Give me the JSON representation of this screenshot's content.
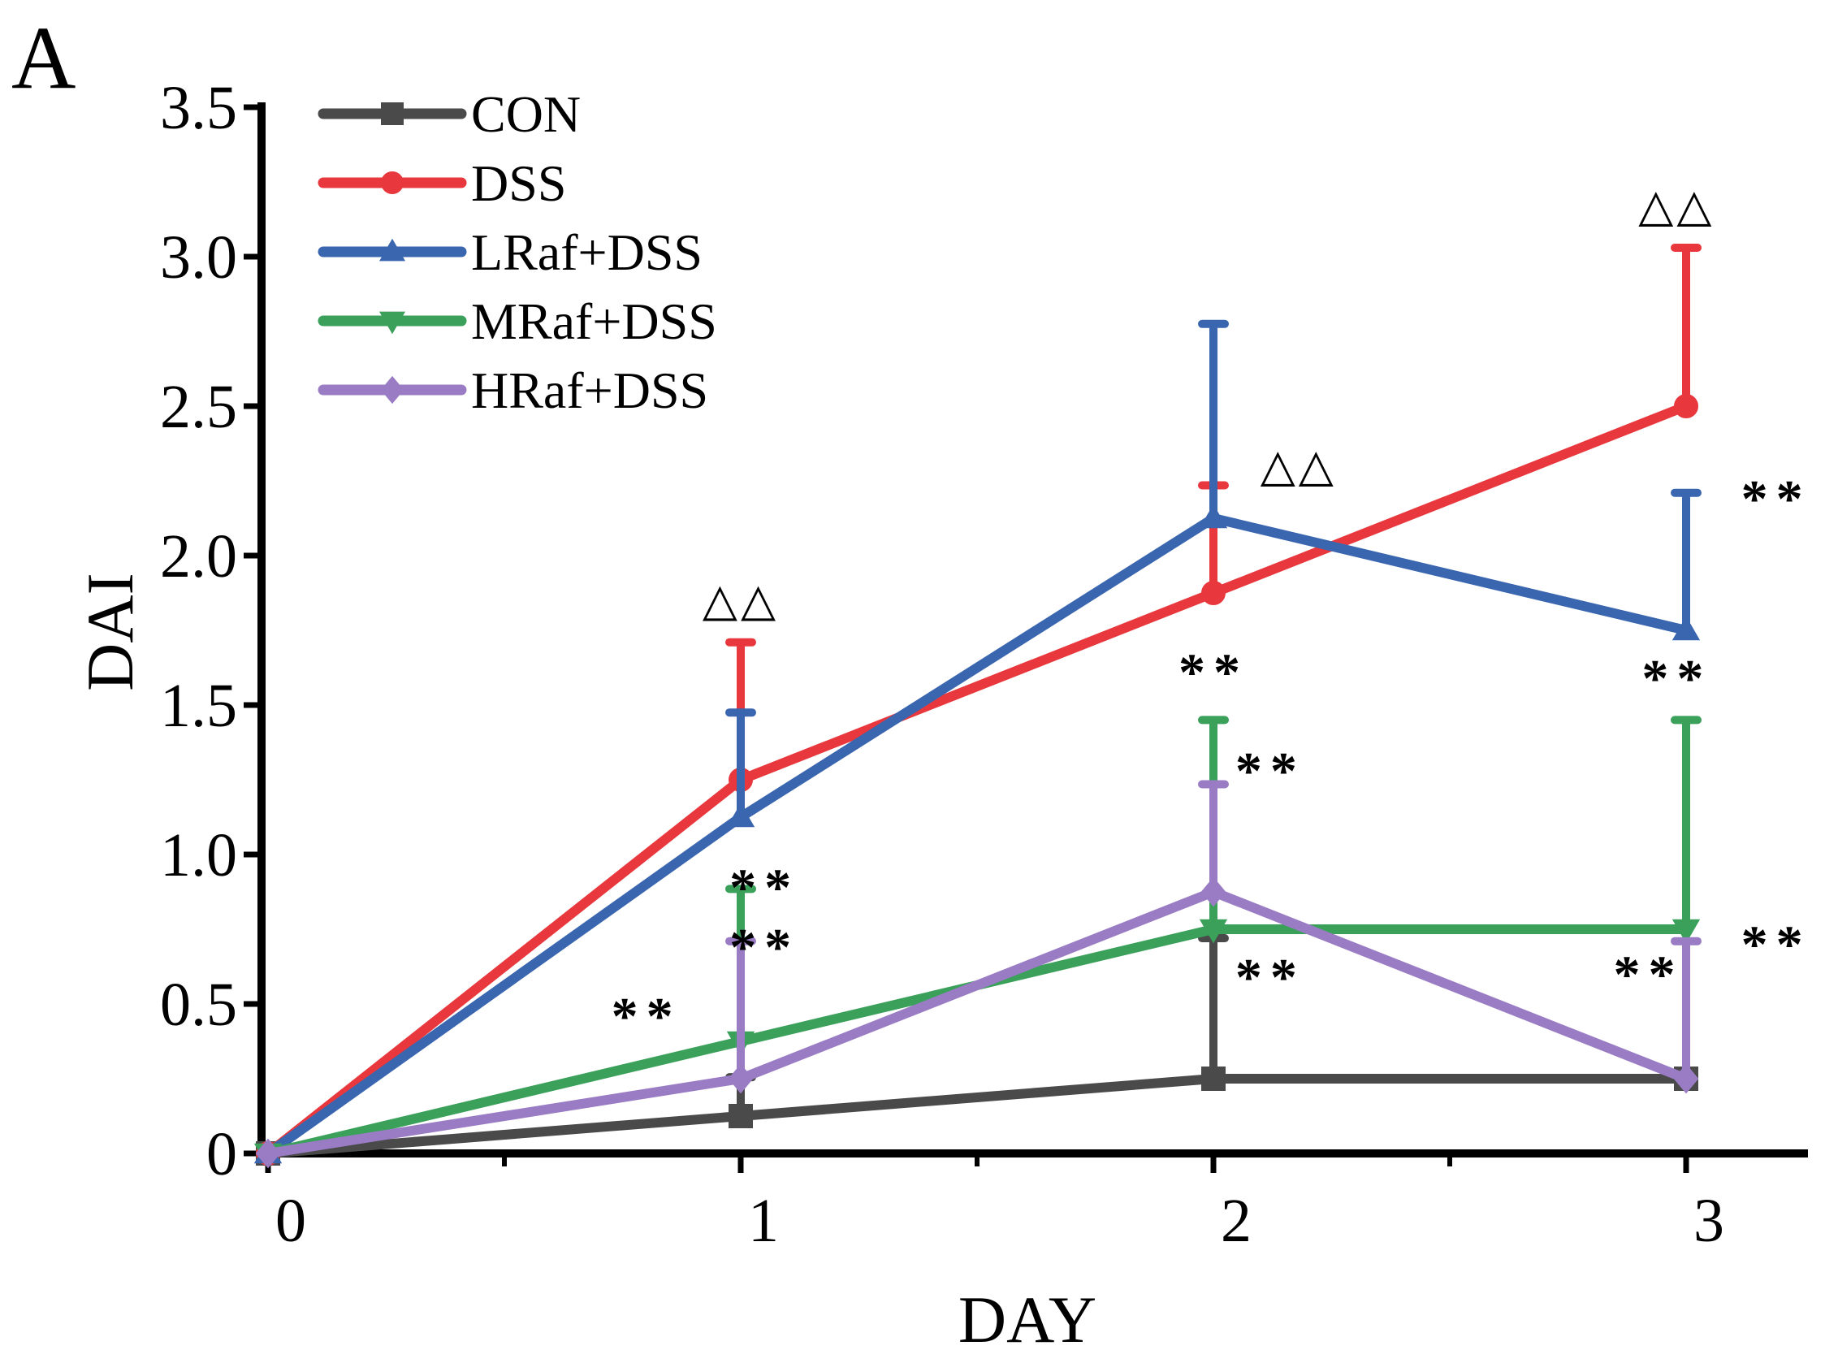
{
  "chart_data": {
    "type": "line",
    "panel_label": "A",
    "xlabel": "DAY",
    "ylabel": "DAI",
    "xlim": [
      -0.05,
      3.25
    ],
    "ylim": [
      0,
      3.5
    ],
    "x_ticks": [
      0,
      1,
      2,
      3
    ],
    "x_minor_ticks": [
      0.5,
      1.5,
      2.5
    ],
    "y_ticks": [
      0,
      0.5,
      1.0,
      1.5,
      2.0,
      2.5,
      3.0,
      3.5
    ],
    "y_tick_labels": [
      "0",
      "0.5",
      "1.0",
      "1.5",
      "2.0",
      "2.5",
      "3.0",
      "3.5"
    ],
    "x_tick_labels": [
      "0",
      "1",
      "2",
      "3"
    ],
    "legend_position": "top-left",
    "x": [
      0,
      1,
      2,
      3
    ],
    "series": [
      {
        "name": "CON",
        "color": "#4a4a4a",
        "marker": "square",
        "values": [
          0,
          0.125,
          0.25,
          0.25
        ],
        "errors": [
          0,
          0.13,
          0.47,
          0
        ]
      },
      {
        "name": "DSS",
        "color": "#e8383d",
        "marker": "circle",
        "values": [
          0,
          1.25,
          1.875,
          2.5
        ],
        "errors": [
          0,
          0.46,
          0.36,
          0.53
        ]
      },
      {
        "name": "LRaf+DSS",
        "color": "#3a66b0",
        "marker": "triangle-up",
        "values": [
          0,
          1.125,
          2.125,
          1.75
        ],
        "errors": [
          0,
          0.35,
          0.65,
          0.46
        ]
      },
      {
        "name": "MRaf+DSS",
        "color": "#3aa05a",
        "marker": "triangle-down",
        "values": [
          0,
          0.375,
          0.75,
          0.75
        ],
        "errors": [
          0,
          0.51,
          0.7,
          0.7
        ]
      },
      {
        "name": "HRaf+DSS",
        "color": "#9a7cc4",
        "marker": "diamond",
        "values": [
          0,
          0.25,
          0.875,
          0.25
        ],
        "errors": [
          0,
          0.46,
          0.36,
          0.46
        ]
      }
    ],
    "annotations": [
      {
        "text": "△△",
        "x": 1,
        "y": 1.8,
        "style": "tri"
      },
      {
        "text": "△△",
        "x": 2.18,
        "y": 2.25,
        "style": "tri"
      },
      {
        "text": "△△",
        "x": 2.98,
        "y": 3.12,
        "style": "tri"
      },
      {
        "text": "**",
        "x": 1.05,
        "y": 0.83,
        "style": "sig"
      },
      {
        "text": "**",
        "x": 1.05,
        "y": 0.63,
        "style": "sig"
      },
      {
        "text": "**",
        "x": 0.8,
        "y": 0.4,
        "style": "sig"
      },
      {
        "text": "**",
        "x": 2.0,
        "y": 1.55,
        "style": "sig"
      },
      {
        "text": "**",
        "x": 2.12,
        "y": 1.22,
        "style": "sig"
      },
      {
        "text": "**",
        "x": 2.12,
        "y": 0.53,
        "style": "sig"
      },
      {
        "text": "**",
        "x": 3.19,
        "y": 2.13,
        "style": "sig"
      },
      {
        "text": "**",
        "x": 2.98,
        "y": 1.53,
        "style": "sig"
      },
      {
        "text": "**",
        "x": 3.19,
        "y": 0.64,
        "style": "sig"
      },
      {
        "text": "**",
        "x": 2.92,
        "y": 0.54,
        "style": "sig"
      }
    ]
  }
}
